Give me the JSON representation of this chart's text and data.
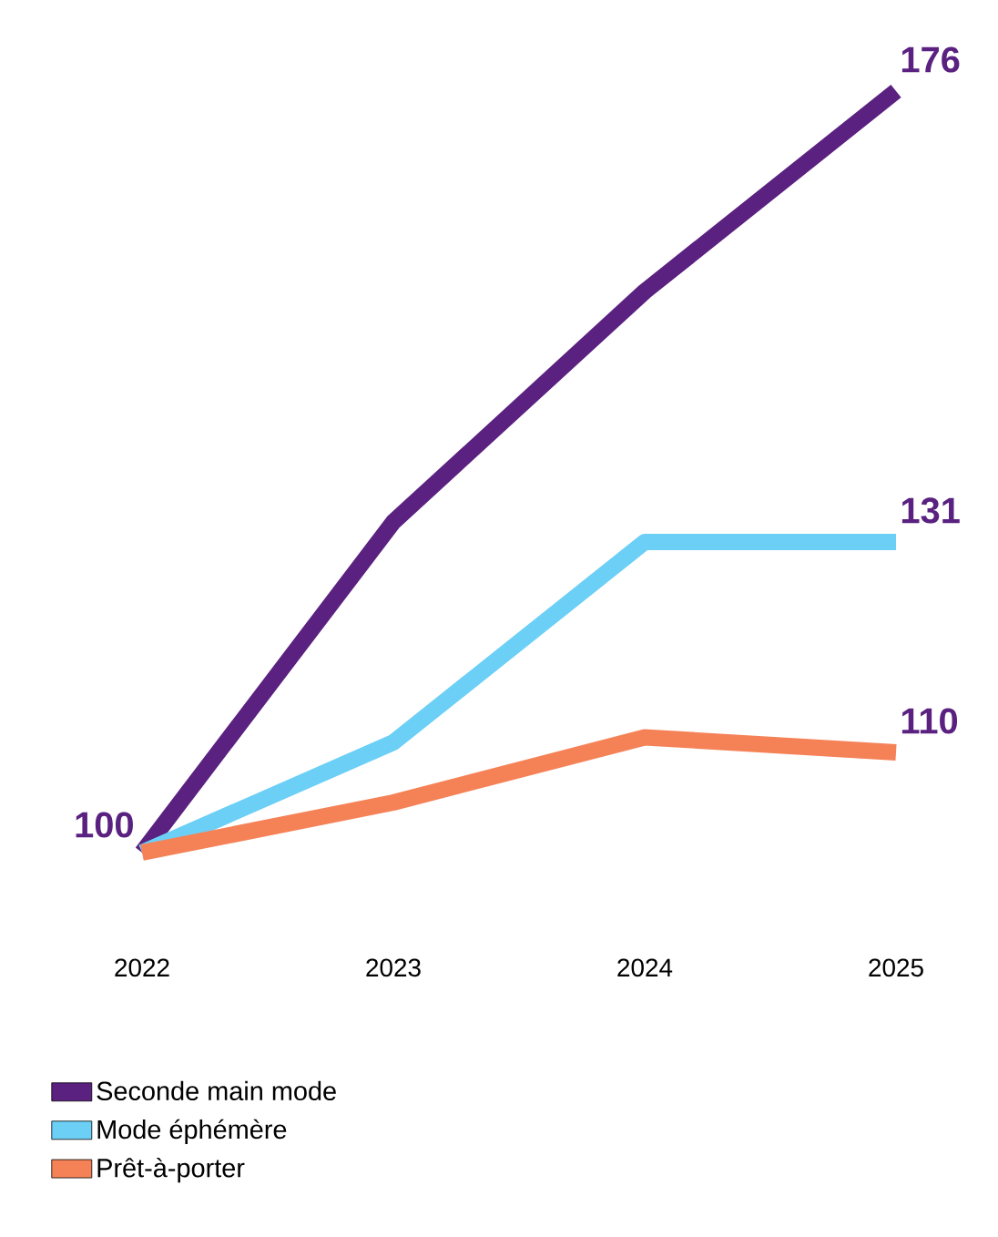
{
  "chart_data": {
    "type": "line",
    "categories": [
      "2022",
      "2023",
      "2024",
      "2025"
    ],
    "legend": "bottom left",
    "series": [
      {
        "name": "Seconde main mode",
        "color": "#5a2180",
        "values": [
          100,
          133,
          156,
          176
        ],
        "value_labels": [
          "100",
          null,
          null,
          "176"
        ]
      },
      {
        "name": "Mode éphémère",
        "color": "#6ccff6",
        "values": [
          100,
          111,
          131,
          131
        ],
        "value_labels": [
          null,
          null,
          null,
          "131"
        ]
      },
      {
        "name": "Prêt-à-porter",
        "color": "#f58257",
        "values": [
          100,
          105,
          111.5,
          110
        ],
        "value_labels": [
          null,
          null,
          null,
          "110"
        ]
      }
    ]
  }
}
